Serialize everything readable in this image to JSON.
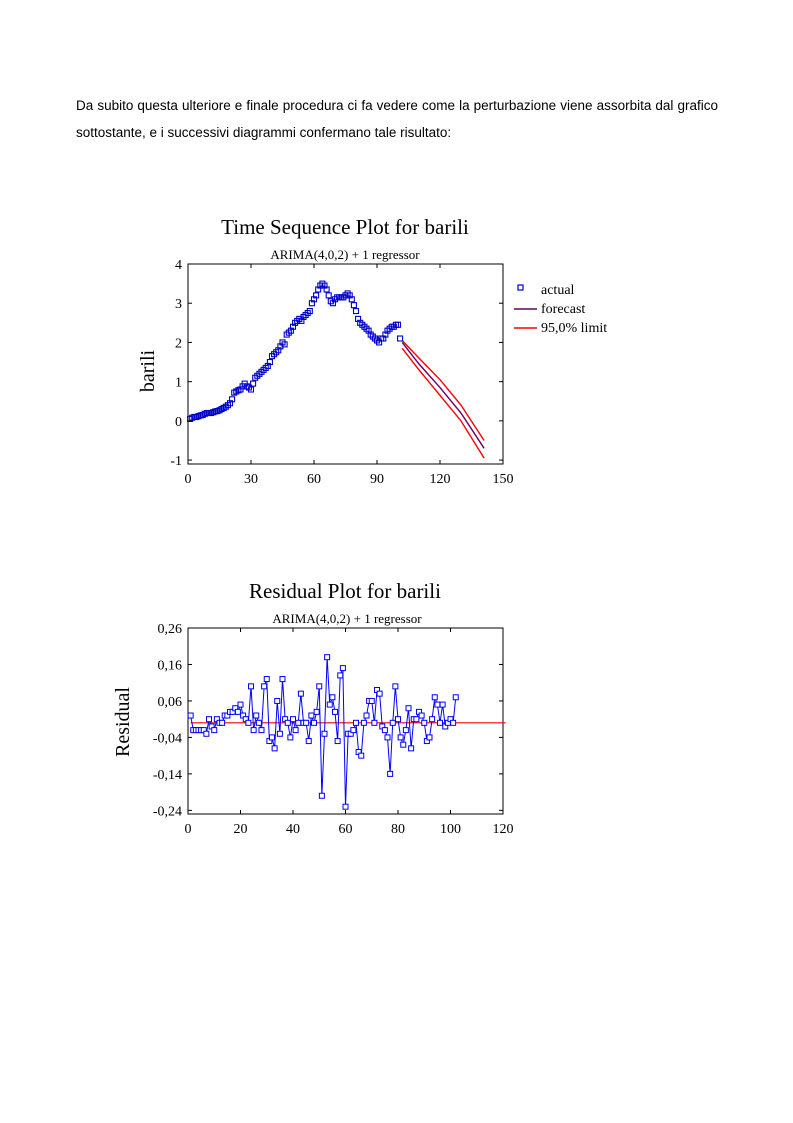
{
  "paragraph": "Da subito questa ulteriore e finale procedura ci fa vedere come la perturbazione viene assorbita dal grafico sottostante, e i successivi diagrammi confermano tale risultato:",
  "colors": {
    "actual": "#0000cc",
    "forecast": "#660066",
    "limit": "#ff0000",
    "residual": "#0000ff",
    "zero_line": "#ff0000"
  },
  "chart_data": [
    {
      "type": "line",
      "title": "Time Sequence Plot for barili",
      "subtitle": "ARIMA(4,0,2) + 1 regressor",
      "ylabel": "barili",
      "xlim": [
        0,
        150
      ],
      "ylim": [
        -1.1,
        4
      ],
      "xticks": [
        "0",
        "30",
        "60",
        "90",
        "120",
        "150"
      ],
      "yticks": [
        "4",
        "3",
        "2",
        "1",
        "0",
        "-1"
      ],
      "legend": [
        "actual",
        "forecast",
        "95,0% limit"
      ],
      "legend_position": "right",
      "series": [
        {
          "name": "actual",
          "marker": "square",
          "x_start": 1,
          "values": [
            0.05,
            0.08,
            0.1,
            0.1,
            0.12,
            0.14,
            0.15,
            0.18,
            0.2,
            0.2,
            0.2,
            0.22,
            0.24,
            0.25,
            0.27,
            0.3,
            0.33,
            0.36,
            0.4,
            0.45,
            0.55,
            0.72,
            0.75,
            0.78,
            0.8,
            0.88,
            0.95,
            0.88,
            0.85,
            0.8,
            0.95,
            1.1,
            1.15,
            1.2,
            1.25,
            1.3,
            1.35,
            1.4,
            1.5,
            1.65,
            1.7,
            1.75,
            1.8,
            1.9,
            2.0,
            1.95,
            2.2,
            2.25,
            2.3,
            2.4,
            2.5,
            2.55,
            2.6,
            2.55,
            2.65,
            2.7,
            2.75,
            2.8,
            3.0,
            3.1,
            3.2,
            3.35,
            3.45,
            3.5,
            3.45,
            3.35,
            3.2,
            3.05,
            3.0,
            3.1,
            3.15,
            3.15,
            3.15,
            3.15,
            3.2,
            3.25,
            3.2,
            3.1,
            2.95,
            2.8,
            2.6,
            2.5,
            2.45,
            2.4,
            2.35,
            2.3,
            2.2,
            2.15,
            2.1,
            2.05,
            2.0,
            2.1,
            2.1,
            2.2,
            2.3,
            2.35,
            2.4,
            2.4,
            2.45,
            2.45,
            2.1
          ]
        },
        {
          "name": "forecast",
          "x": [
            102,
            110,
            120,
            130,
            141
          ],
          "values": [
            2.0,
            1.45,
            0.85,
            0.2,
            -0.7
          ]
        },
        {
          "name": "95,0% limit",
          "x": [
            102,
            110,
            120,
            130,
            141
          ],
          "values": [
            2.05,
            1.6,
            1.05,
            0.4,
            -0.5
          ]
        },
        {
          "name": "95,0% limit",
          "x": [
            102,
            110,
            120,
            130,
            141
          ],
          "values": [
            1.85,
            1.3,
            0.65,
            0.0,
            -0.95
          ]
        }
      ]
    },
    {
      "type": "line",
      "title": "Residual Plot for barili",
      "subtitle": "ARIMA(4,0,2) + 1 regressor",
      "ylabel": "Residual",
      "xlim": [
        0,
        120
      ],
      "ylim": [
        -0.25,
        0.26
      ],
      "xticks": [
        "0",
        "20",
        "40",
        "60",
        "80",
        "100",
        "120"
      ],
      "yticks": [
        "0,26",
        "0,16",
        "0,06",
        "-0,04",
        "-0,14",
        "-0,24"
      ],
      "reference_line": 0,
      "series": [
        {
          "name": "residual",
          "marker": "square",
          "x_start": 1,
          "values": [
            0.02,
            -0.02,
            -0.02,
            -0.02,
            -0.02,
            -0.02,
            -0.03,
            0.01,
            -0.01,
            -0.02,
            0.01,
            0.0,
            0.0,
            0.02,
            0.02,
            0.03,
            0.03,
            0.04,
            0.03,
            0.05,
            0.02,
            0.01,
            0.0,
            0.1,
            -0.02,
            0.02,
            0.0,
            -0.02,
            0.1,
            0.12,
            -0.05,
            -0.04,
            -0.07,
            0.06,
            -0.03,
            0.12,
            0.01,
            0.0,
            -0.04,
            0.01,
            -0.02,
            0.0,
            0.08,
            0.0,
            0.0,
            -0.05,
            0.02,
            0.0,
            0.03,
            0.1,
            -0.2,
            -0.03,
            0.18,
            0.05,
            0.07,
            0.03,
            -0.05,
            0.13,
            0.15,
            -0.23,
            -0.03,
            -0.03,
            -0.02,
            0.0,
            -0.08,
            -0.09,
            0.0,
            0.02,
            0.06,
            0.06,
            0.0,
            0.09,
            0.08,
            -0.01,
            -0.02,
            -0.04,
            -0.14,
            0.0,
            0.1,
            0.01,
            -0.04,
            -0.06,
            -0.02,
            0.04,
            -0.07,
            0.01,
            0.01,
            0.03,
            0.02,
            0.0,
            -0.05,
            -0.04,
            0.01,
            0.07,
            0.05,
            0.0,
            0.05,
            -0.01,
            0.0,
            0.01,
            0.0,
            0.07
          ]
        },
        {
          "name": "zero",
          "x": [
            0,
            120
          ],
          "values": [
            0,
            0
          ]
        }
      ]
    }
  ]
}
